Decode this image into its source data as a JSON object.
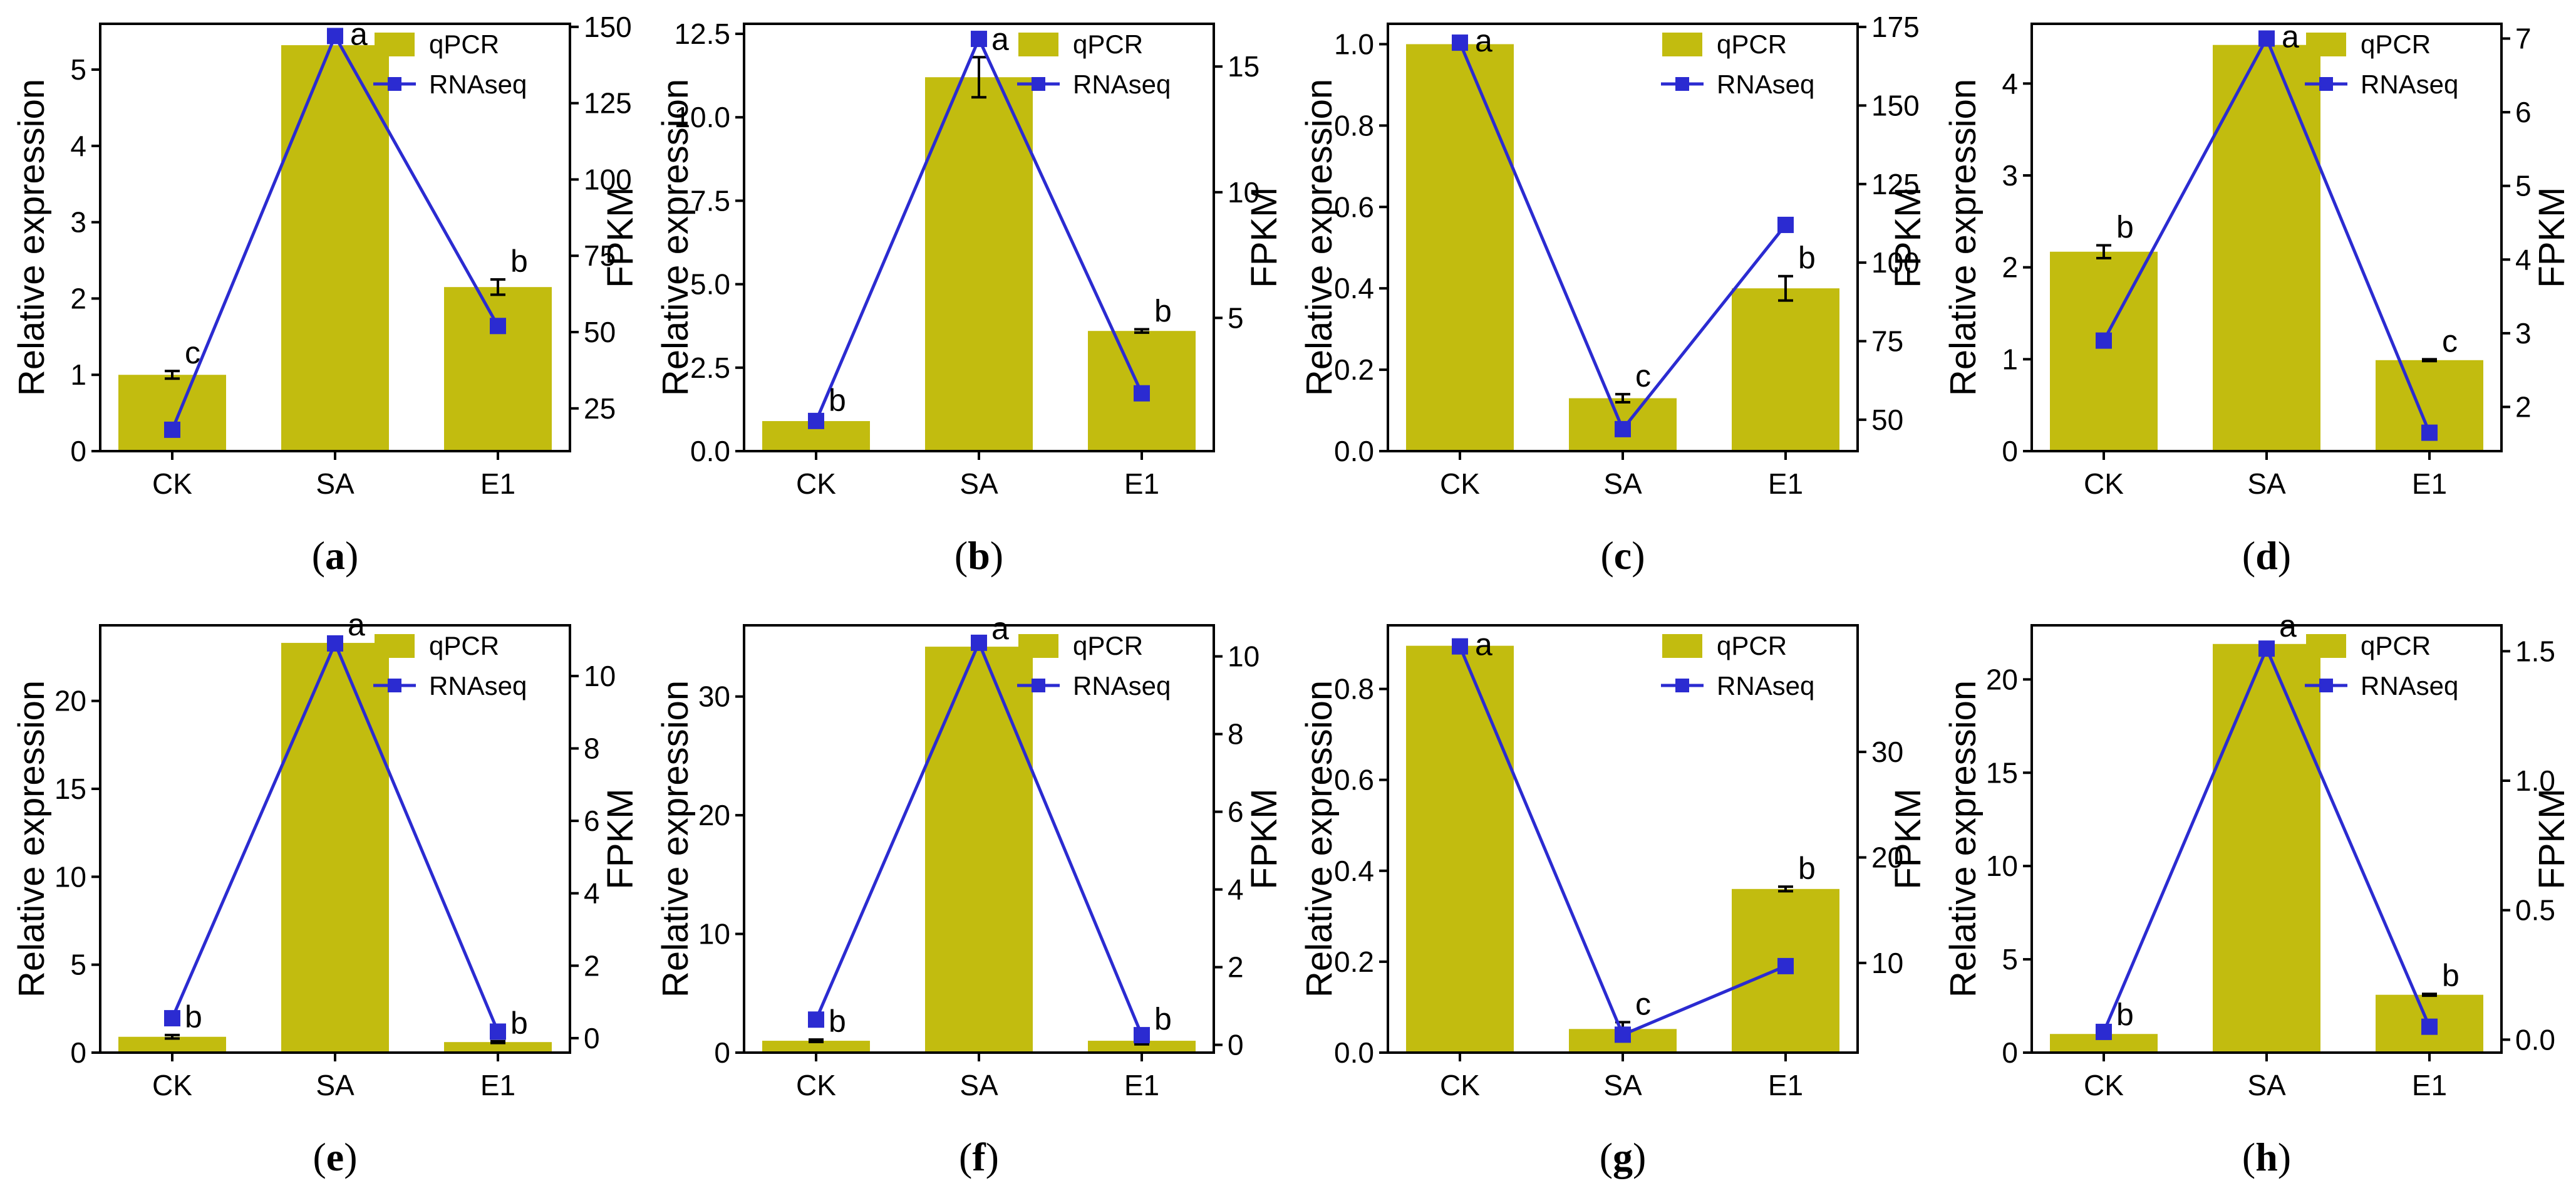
{
  "figure": {
    "x_categories": [
      "CK",
      "SA",
      "E1"
    ],
    "legend": {
      "qpcr": "qPCR",
      "rnaseq": "RNAseq"
    },
    "left_axis_label": "Relative expression",
    "right_axis_label": "FPKM"
  },
  "colors": {
    "bar": "#c2bc0f",
    "line": "#2b2bd1",
    "axis": "#000000"
  },
  "chart_data": [
    {
      "panel": "a",
      "type": "bar",
      "categories": [
        "CK",
        "SA",
        "E1"
      ],
      "series": [
        {
          "name": "qPCR",
          "axis": "left",
          "values": [
            1.0,
            5.32,
            2.15
          ],
          "errors": [
            0.05,
            0.0,
            0.1
          ],
          "labels": [
            "c",
            "",
            "b"
          ]
        },
        {
          "name": "RNAseq",
          "axis": "right",
          "values": [
            18,
            147,
            52
          ],
          "labels": [
            "",
            "a",
            ""
          ]
        }
      ],
      "ylabel": "Relative expression",
      "y2label": "FPKM",
      "ylim": [
        0,
        5.6
      ],
      "yticks": [
        0,
        1,
        2,
        3,
        4,
        5
      ],
      "ytick_labels": [
        "0",
        "1",
        "2",
        "3",
        "4",
        "5"
      ],
      "y2lim": [
        11,
        151
      ],
      "y2ticks": [
        25,
        50,
        75,
        100,
        125,
        150
      ],
      "y2tick_labels": [
        "25",
        "50",
        "75",
        "100",
        "125",
        "150"
      ]
    },
    {
      "panel": "b",
      "type": "bar",
      "categories": [
        "CK",
        "SA",
        "E1"
      ],
      "series": [
        {
          "name": "qPCR",
          "axis": "left",
          "values": [
            0.9,
            11.2,
            3.6
          ],
          "errors": [
            0.08,
            0.6,
            0.05
          ],
          "labels": [
            "b",
            "a",
            "b"
          ]
        },
        {
          "name": "RNAseq",
          "axis": "right",
          "values": [
            0.9,
            16.1,
            2.0
          ],
          "labels": [
            "",
            "",
            ""
          ]
        }
      ],
      "ylabel": "Relative expression",
      "y2label": "FPKM",
      "ylim": [
        0,
        12.8
      ],
      "yticks": [
        0,
        2.5,
        5,
        7.5,
        10,
        12.5
      ],
      "ytick_labels": [
        "0.0",
        "2.5",
        "5.0",
        "7.5",
        "10.0",
        "12.5"
      ],
      "y2lim": [
        -0.3,
        16.7
      ],
      "y2ticks": [
        5,
        10,
        15
      ],
      "y2tick_labels": [
        "5",
        "10",
        "15"
      ]
    },
    {
      "panel": "c",
      "type": "bar",
      "categories": [
        "CK",
        "SA",
        "E1"
      ],
      "series": [
        {
          "name": "qPCR",
          "axis": "left",
          "values": [
            1.0,
            0.13,
            0.4
          ],
          "errors": [
            0.0,
            0.01,
            0.03
          ],
          "labels": [
            "",
            "c",
            "b"
          ]
        },
        {
          "name": "RNAseq",
          "axis": "right",
          "values": [
            170,
            47,
            112
          ],
          "labels": [
            "a",
            "",
            ""
          ]
        }
      ],
      "ylabel": "Relative expression",
      "y2label": "FPKM",
      "ylim": [
        0,
        1.05
      ],
      "yticks": [
        0,
        0.2,
        0.4,
        0.6,
        0.8,
        1.0
      ],
      "ytick_labels": [
        "0.0",
        "0.2",
        "0.4",
        "0.6",
        "0.8",
        "1.0"
      ],
      "y2lim": [
        40,
        176
      ],
      "y2ticks": [
        50,
        75,
        100,
        125,
        150,
        175
      ],
      "y2tick_labels": [
        "50",
        "75",
        "100",
        "125",
        "150",
        "175"
      ]
    },
    {
      "panel": "d",
      "type": "bar",
      "categories": [
        "CK",
        "SA",
        "E1"
      ],
      "series": [
        {
          "name": "qPCR",
          "axis": "left",
          "values": [
            2.17,
            4.42,
            0.99
          ],
          "errors": [
            0.07,
            0.0,
            0.01
          ],
          "labels": [
            "b",
            "",
            "c"
          ]
        },
        {
          "name": "RNAseq",
          "axis": "right",
          "values": [
            2.9,
            7.0,
            1.65
          ],
          "labels": [
            "",
            "a",
            ""
          ]
        }
      ],
      "ylabel": "Relative expression",
      "y2label": "FPKM",
      "ylim": [
        0,
        4.65
      ],
      "yticks": [
        0,
        1,
        2,
        3,
        4
      ],
      "ytick_labels": [
        "0",
        "1",
        "2",
        "3",
        "4"
      ],
      "y2lim": [
        1.4,
        7.2
      ],
      "y2ticks": [
        2,
        3,
        4,
        5,
        6,
        7
      ],
      "y2tick_labels": [
        "2",
        "3",
        "4",
        "5",
        "6",
        "7"
      ]
    },
    {
      "panel": "e",
      "type": "bar",
      "categories": [
        "CK",
        "SA",
        "E1"
      ],
      "series": [
        {
          "name": "qPCR",
          "axis": "left",
          "values": [
            0.9,
            23.3,
            0.6
          ],
          "errors": [
            0.1,
            0.0,
            0.05
          ],
          "labels": [
            "b",
            "a",
            "b"
          ]
        },
        {
          "name": "RNAseq",
          "axis": "right",
          "values": [
            0.55,
            10.9,
            0.18
          ],
          "labels": [
            "",
            "",
            ""
          ]
        }
      ],
      "ylabel": "Relative expression",
      "y2label": "FPKM",
      "ylim": [
        0,
        24.3
      ],
      "yticks": [
        0,
        5,
        10,
        15,
        20
      ],
      "ytick_labels": [
        "0",
        "5",
        "10",
        "15",
        "20"
      ],
      "y2lim": [
        -0.4,
        11.4
      ],
      "y2ticks": [
        0,
        2,
        4,
        6,
        8,
        10
      ],
      "y2tick_labels": [
        "0",
        "2",
        "4",
        "6",
        "8",
        "10"
      ]
    },
    {
      "panel": "f",
      "type": "bar",
      "categories": [
        "CK",
        "SA",
        "E1"
      ],
      "series": [
        {
          "name": "qPCR",
          "axis": "left",
          "values": [
            1.0,
            34.2,
            1.0
          ],
          "errors": [
            0.1,
            0.0,
            0.3
          ],
          "labels": [
            "b",
            "a",
            "b"
          ]
        },
        {
          "name": "RNAseq",
          "axis": "right",
          "values": [
            0.65,
            10.35,
            0.25
          ],
          "labels": [
            "",
            "",
            ""
          ]
        }
      ],
      "ylabel": "Relative expression",
      "y2label": "FPKM",
      "ylim": [
        0,
        36
      ],
      "yticks": [
        0,
        10,
        20,
        30
      ],
      "ytick_labels": [
        "0",
        "10",
        "20",
        "30"
      ],
      "y2lim": [
        -0.2,
        10.8
      ],
      "y2ticks": [
        0,
        2,
        4,
        6,
        8,
        10
      ],
      "y2tick_labels": [
        "0",
        "2",
        "4",
        "6",
        "8",
        "10"
      ]
    },
    {
      "panel": "g",
      "type": "bar",
      "categories": [
        "CK",
        "SA",
        "E1"
      ],
      "series": [
        {
          "name": "qPCR",
          "axis": "left",
          "values": [
            0.895,
            0.052,
            0.36
          ],
          "errors": [
            0.0,
            0.015,
            0.005
          ],
          "labels": [
            "",
            "c",
            "b"
          ]
        },
        {
          "name": "RNAseq",
          "axis": "right",
          "values": [
            40,
            3.2,
            9.7
          ],
          "labels": [
            "a",
            "",
            ""
          ]
        }
      ],
      "ylabel": "Relative expression",
      "y2label": "FPKM",
      "ylim": [
        0,
        0.94
      ],
      "yticks": [
        0,
        0.2,
        0.4,
        0.6,
        0.8
      ],
      "ytick_labels": [
        "0.0",
        "0.2",
        "0.4",
        "0.6",
        "0.8"
      ],
      "y2lim": [
        1.5,
        42
      ],
      "y2ticks": [
        10,
        20,
        30
      ],
      "y2tick_labels": [
        "10",
        "20",
        "30"
      ]
    },
    {
      "panel": "h",
      "type": "bar",
      "categories": [
        "CK",
        "SA",
        "E1"
      ],
      "series": [
        {
          "name": "qPCR",
          "axis": "left",
          "values": [
            1.0,
            21.9,
            3.1
          ],
          "errors": [
            0.05,
            0.0,
            0.05
          ],
          "labels": [
            "b",
            "a",
            "b"
          ]
        },
        {
          "name": "RNAseq",
          "axis": "right",
          "values": [
            0.03,
            1.51,
            0.05
          ],
          "labels": [
            "",
            "",
            ""
          ]
        }
      ],
      "ylabel": "Relative expression",
      "y2label": "FPKM",
      "ylim": [
        0,
        22.9
      ],
      "yticks": [
        0,
        5,
        10,
        15,
        20
      ],
      "ytick_labels": [
        "0",
        "5",
        "10",
        "15",
        "20"
      ],
      "y2lim": [
        -0.05,
        1.6
      ],
      "y2ticks": [
        0,
        0.5,
        1.0,
        1.5
      ],
      "y2tick_labels": [
        "0.0",
        "0.5",
        "1.0",
        "1.5"
      ]
    }
  ]
}
